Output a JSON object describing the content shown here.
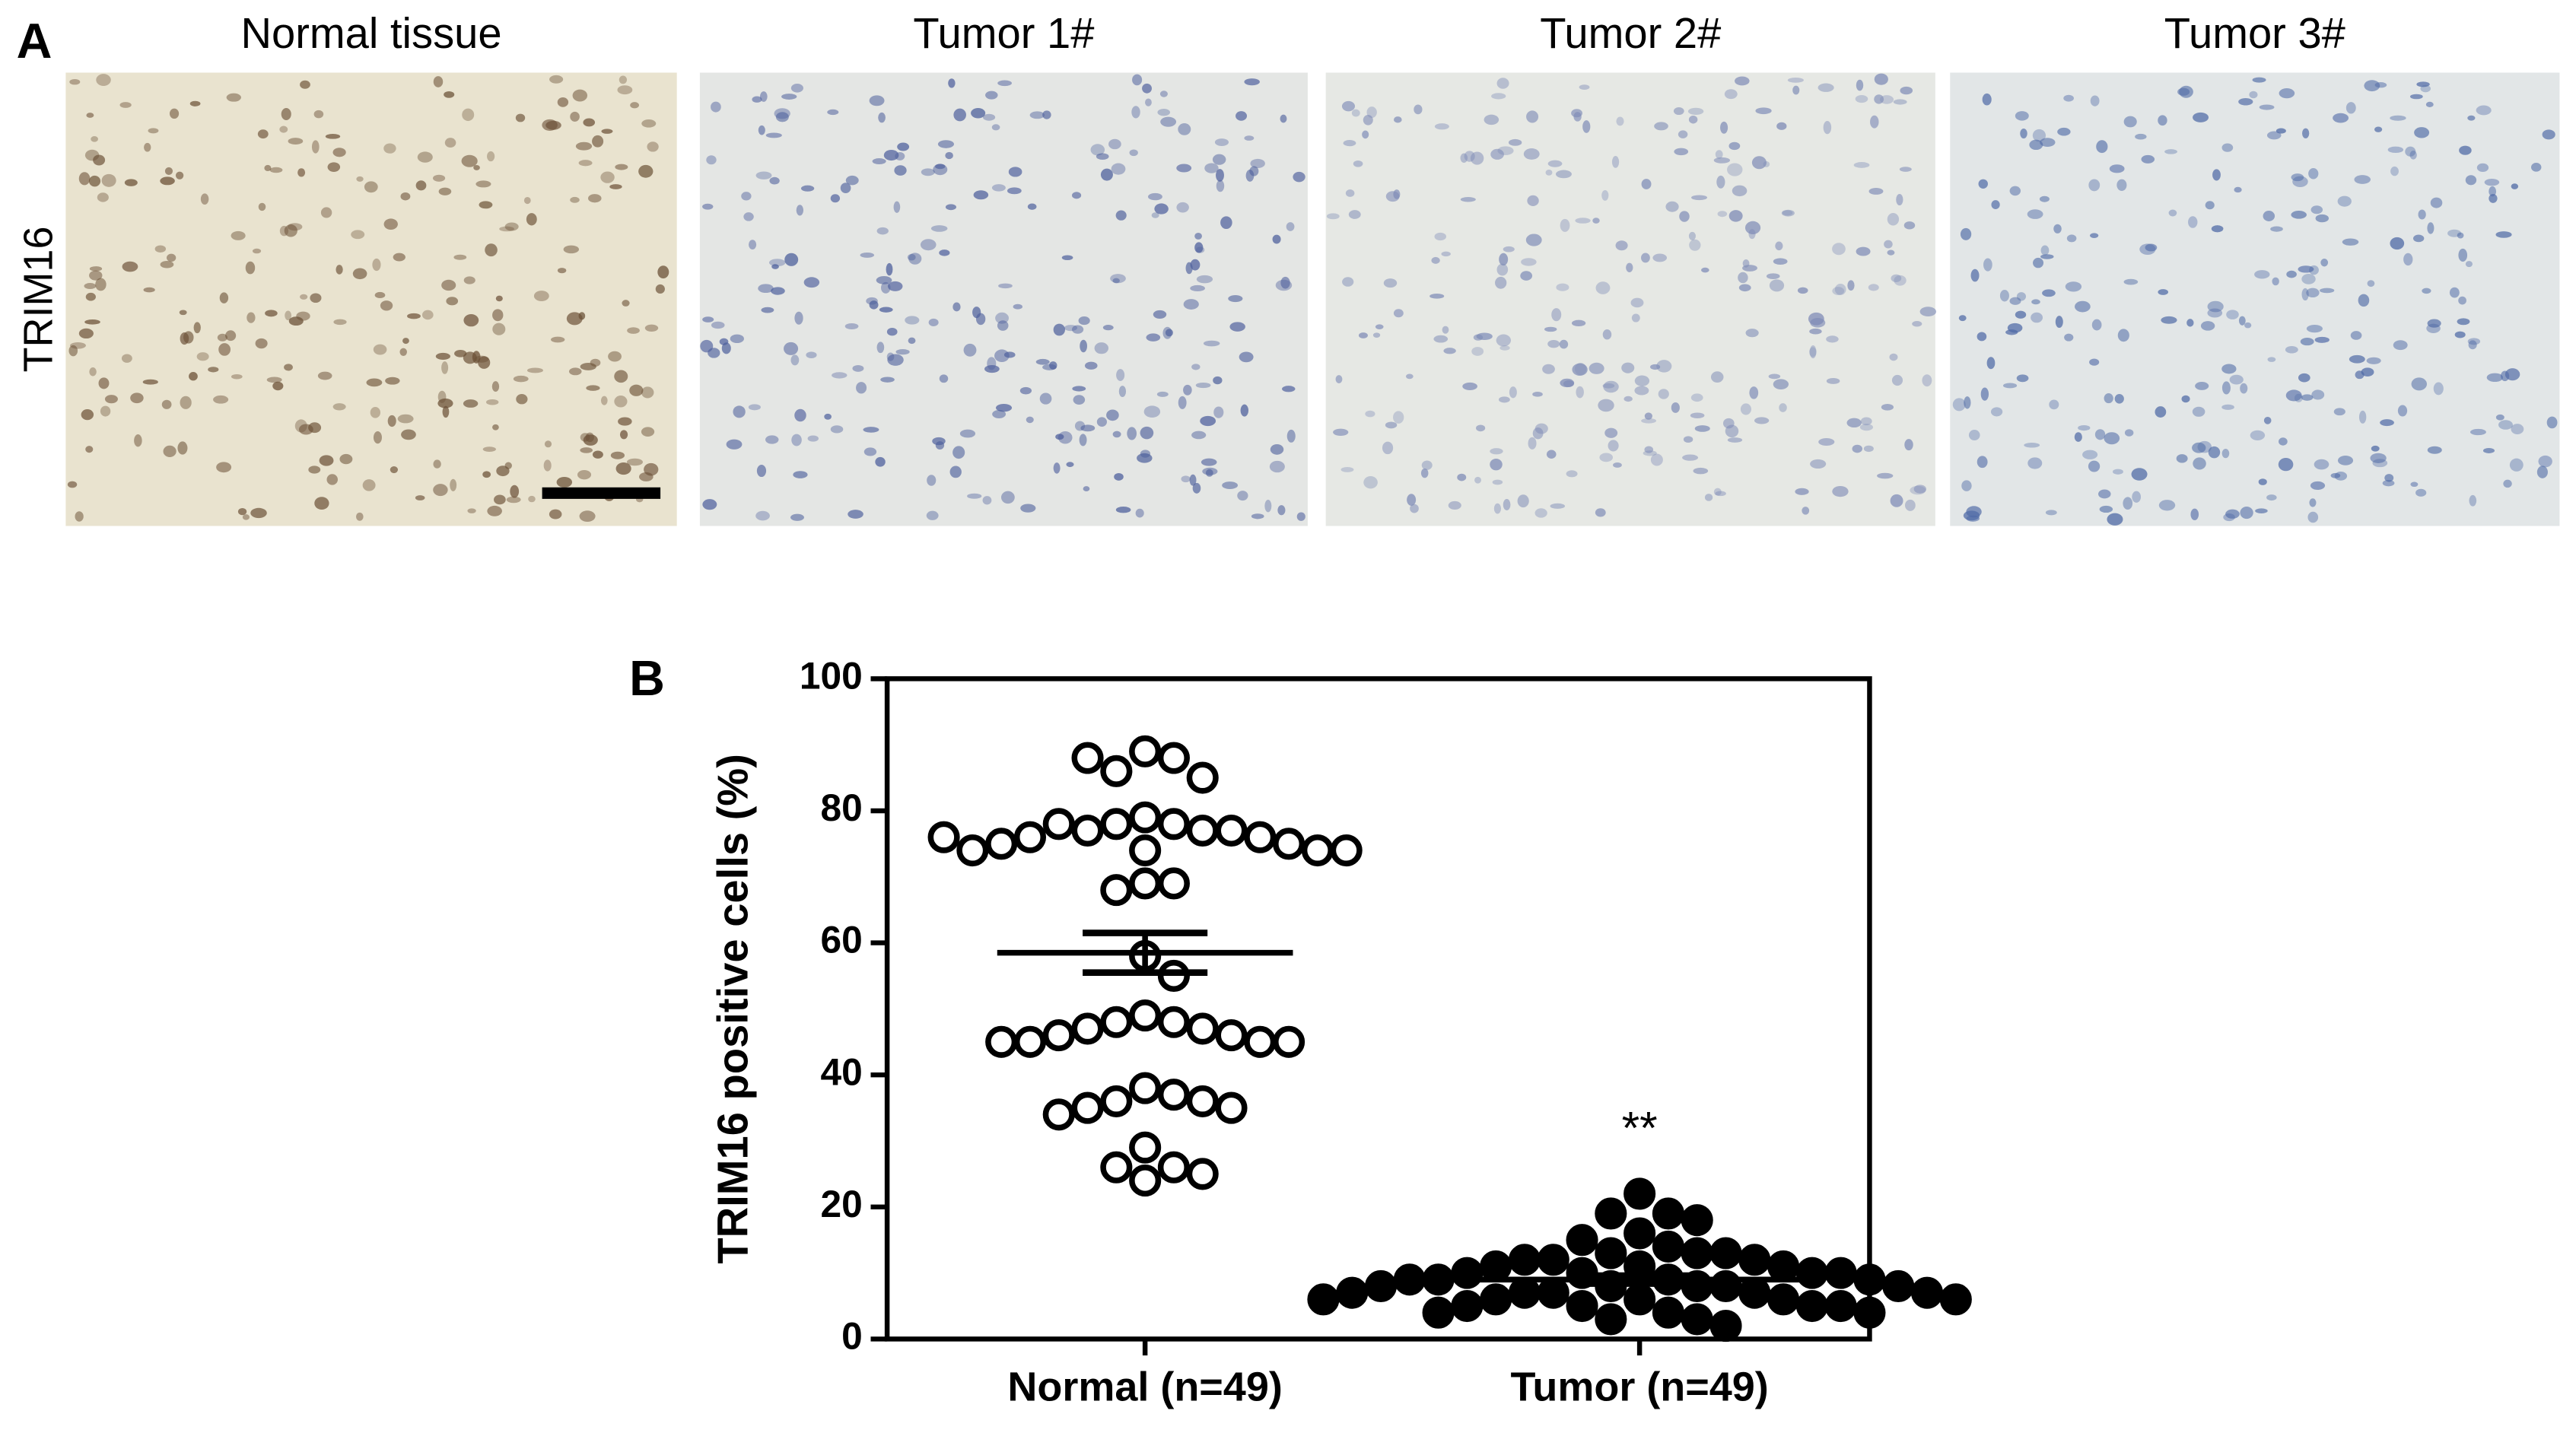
{
  "panel_a": {
    "label": "A",
    "row_label": "TRIM16",
    "images": [
      {
        "title": "Normal tissue",
        "tone": "#e9e3cf",
        "stain": "#6b5036"
      },
      {
        "title": "Tumor 1#",
        "tone": "#e4e6e4",
        "stain": "#4d5f9c"
      },
      {
        "title": "Tumor 2#",
        "tone": "#e6e8e4",
        "stain": "#7e8bb6"
      },
      {
        "title": "Tumor 3#",
        "tone": "#e2e6e7",
        "stain": "#4f6aa6"
      }
    ]
  },
  "chart_data": {
    "type": "dot",
    "panel_label": "B",
    "y_label": "TRIM16 positive cells (%)",
    "categories": [
      "Normal (n=49)",
      "Tumor (n=49)"
    ],
    "groups": [
      {
        "fill": "open",
        "mean": 58.5,
        "sem": 3,
        "values": [
          89,
          88,
          86,
          85,
          88,
          79,
          78,
          78,
          77,
          77,
          77,
          78,
          76,
          76,
          75,
          75,
          74,
          74,
          74,
          74,
          76,
          69,
          69,
          68,
          58,
          55,
          49,
          48,
          48,
          47,
          47,
          46,
          46,
          45,
          45,
          45,
          45,
          38,
          37,
          36,
          36,
          35,
          35,
          34,
          29,
          26,
          26,
          25,
          24
        ]
      },
      {
        "fill": "filled",
        "mean": 9,
        "sem": 0.6,
        "annotation": "**",
        "values": [
          22,
          19,
          19,
          18,
          16,
          15,
          14,
          13,
          13,
          13,
          12,
          12,
          12,
          11,
          11,
          11,
          10,
          10,
          10,
          10,
          9,
          9,
          9,
          9,
          8,
          8,
          8,
          8,
          8,
          7,
          7,
          7,
          7,
          7,
          6,
          6,
          6,
          6,
          6,
          5,
          5,
          5,
          5,
          4,
          4,
          4,
          3,
          3,
          2
        ]
      }
    ],
    "ylim": [
      0,
      100
    ],
    "yticks": [
      0,
      20,
      40,
      60,
      80,
      100
    ],
    "color": "#000000"
  }
}
